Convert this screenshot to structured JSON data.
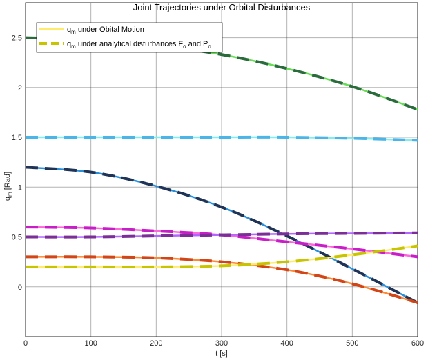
{
  "chart_data": {
    "type": "line",
    "title": "Joint Trajectories under Orbital Disturbances",
    "xlabel": "t [s]",
    "ylabel": "q_m [Rad]",
    "xlim": [
      0,
      600
    ],
    "ylim": [
      -0.5,
      2.85
    ],
    "xticks": [
      0,
      100,
      200,
      300,
      400,
      500,
      600
    ],
    "yticks": [
      0,
      0.5,
      1,
      1.5,
      2,
      2.5
    ],
    "grid": true,
    "legend": {
      "placement": "top-left",
      "entries": [
        {
          "text": "q_m under Obital Motion",
          "style": "solid",
          "color": "#ffec6e"
        },
        {
          "text": "q_m under analytical disturbances F_o and P_o",
          "style": "dashed",
          "color": "#c8c400"
        }
      ]
    },
    "x": [
      0,
      100,
      200,
      300,
      400,
      500,
      600
    ],
    "series": [
      {
        "color": "#66dd55",
        "dash_color": "#2a6b3c",
        "values": [
          2.5,
          2.48,
          2.42,
          2.33,
          2.19,
          2.01,
          1.78
        ]
      },
      {
        "color": "#7feeee",
        "dash_color": "#4ab5e6",
        "values": [
          1.5,
          1.5,
          1.5,
          1.5,
          1.5,
          1.49,
          1.47
        ]
      },
      {
        "color": "#2a8fd9",
        "dash_color": "#1f3357",
        "values": [
          1.2,
          1.15,
          1.01,
          0.8,
          0.51,
          0.18,
          -0.16
        ]
      },
      {
        "color": "#ff66dd",
        "dash_color": "#c81ec8",
        "values": [
          0.6,
          0.59,
          0.56,
          0.52,
          0.45,
          0.38,
          0.3
        ]
      },
      {
        "color": "#b266ff",
        "dash_color": "#7a2e96",
        "values": [
          0.5,
          0.5,
          0.51,
          0.52,
          0.53,
          0.535,
          0.54
        ]
      },
      {
        "color": "#ff8833",
        "dash_color": "#d24516",
        "values": [
          0.3,
          0.3,
          0.29,
          0.25,
          0.17,
          0.03,
          -0.16
        ]
      },
      {
        "color": "#ffec6e",
        "dash_color": "#c8c400",
        "values": [
          0.2,
          0.2,
          0.2,
          0.21,
          0.25,
          0.32,
          0.41
        ]
      }
    ]
  }
}
